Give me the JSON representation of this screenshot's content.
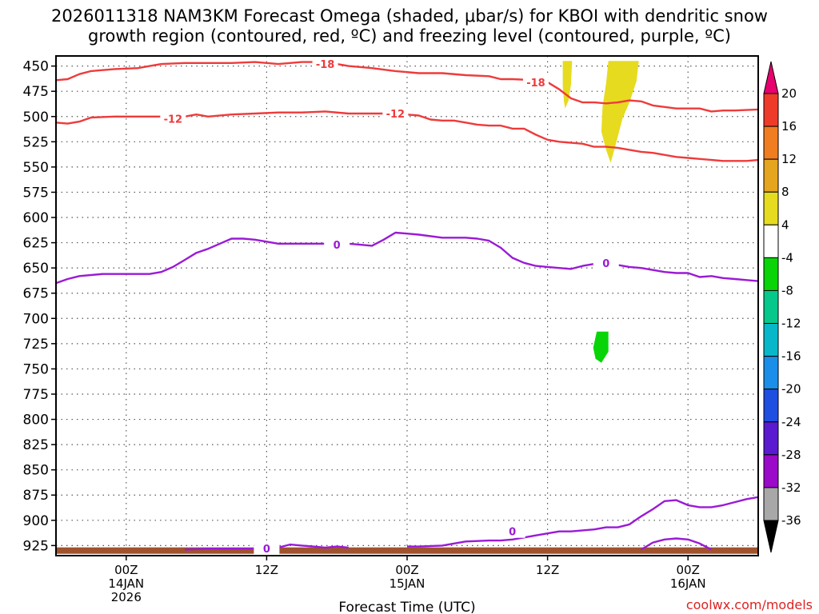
{
  "title_line1": "2026011318 NAM3KM Forecast Omega (shaded, μbar/s) for KBOI with dendritic snow",
  "title_line2": "growth region (contoured, red, ºC) and freezing level (contoured, purple, ºC)",
  "xlabel": "Forecast Time (UTC)",
  "credit": "coolwx.com/models",
  "chart_data": {
    "type": "heatmap",
    "title": "2026011318 NAM3KM Forecast Omega (shaded, μbar/s) for KBOI with dendritic snow growth region (contoured, red, ºC) and freezing level (contoured, purple, ºC)",
    "xlabel": "Forecast Time (UTC)",
    "ylabel": "",
    "x_unit": "forecast hour from 2026-01-13 18Z",
    "xlim": [
      0,
      60
    ],
    "ylim": [
      440,
      935
    ],
    "y_inverted": true,
    "y_ticks": [
      450,
      475,
      500,
      525,
      550,
      575,
      600,
      625,
      650,
      675,
      700,
      725,
      750,
      775,
      800,
      825,
      850,
      875,
      900,
      925
    ],
    "x_ticks": [
      {
        "x": 6,
        "lines": [
          "00Z",
          "14JAN",
          "2026"
        ]
      },
      {
        "x": 18,
        "lines": [
          "12Z"
        ]
      },
      {
        "x": 30,
        "lines": [
          "00Z",
          "15JAN"
        ]
      },
      {
        "x": 42,
        "lines": [
          "12Z"
        ]
      },
      {
        "x": 54,
        "lines": [
          "00Z",
          "16JAN"
        ]
      }
    ],
    "grid": true,
    "colorbar": {
      "label_values": [
        20,
        16,
        12,
        8,
        4,
        -4,
        -8,
        -12,
        -16,
        -20,
        -24,
        -28,
        -32,
        -36
      ],
      "colors": [
        "#e8006f",
        "#ee3b2a",
        "#f07d20",
        "#e6a51f",
        "#e6db1f",
        "#ffffff",
        "#08d408",
        "#06c88a",
        "#08b8c8",
        "#1a8ee8",
        "#1f4fe0",
        "#5a1ad0",
        "#9a0ac8",
        "#a8a8a8",
        "#000000"
      ]
    },
    "contours": [
      {
        "name": "-18",
        "color": "#ee3b3b",
        "label": "-18",
        "label_at": [
          [
            23,
            448
          ],
          [
            41,
            466
          ]
        ],
        "points": [
          [
            0,
            464
          ],
          [
            1,
            463
          ],
          [
            2,
            458
          ],
          [
            3,
            455
          ],
          [
            5,
            453
          ],
          [
            7,
            452
          ],
          [
            8,
            450
          ],
          [
            9,
            448
          ],
          [
            11,
            447
          ],
          [
            13,
            447
          ],
          [
            15,
            447
          ],
          [
            17,
            446
          ],
          [
            19,
            448
          ],
          [
            21,
            446
          ],
          [
            23,
            446
          ],
          [
            25,
            450
          ],
          [
            27,
            452
          ],
          [
            29,
            455
          ],
          [
            31,
            457
          ],
          [
            33,
            457
          ],
          [
            35,
            459
          ],
          [
            37,
            460
          ],
          [
            38,
            463
          ],
          [
            39,
            463
          ],
          [
            41,
            464
          ],
          [
            42,
            466
          ],
          [
            43,
            473
          ],
          [
            44,
            482
          ],
          [
            45,
            486
          ],
          [
            46,
            486
          ],
          [
            47,
            487
          ],
          [
            48,
            486
          ],
          [
            49,
            484
          ],
          [
            50,
            485
          ],
          [
            51,
            489
          ],
          [
            53,
            492
          ],
          [
            55,
            492
          ],
          [
            56,
            495
          ],
          [
            57,
            494
          ],
          [
            58,
            494
          ],
          [
            60,
            493
          ]
        ]
      },
      {
        "name": "-12",
        "color": "#ee3b3b",
        "label": "-12",
        "label_at": [
          [
            10,
            502
          ],
          [
            29,
            497
          ]
        ],
        "points": [
          [
            0,
            506
          ],
          [
            1,
            507
          ],
          [
            2,
            505
          ],
          [
            3,
            501
          ],
          [
            5,
            500
          ],
          [
            7,
            500
          ],
          [
            9,
            500
          ],
          [
            11,
            500
          ],
          [
            12,
            498
          ],
          [
            13,
            500
          ],
          [
            15,
            498
          ],
          [
            17,
            497
          ],
          [
            19,
            496
          ],
          [
            21,
            496
          ],
          [
            23,
            495
          ],
          [
            25,
            497
          ],
          [
            27,
            497
          ],
          [
            29,
            497
          ],
          [
            31,
            499
          ],
          [
            32,
            503
          ],
          [
            33,
            504
          ],
          [
            34,
            504
          ],
          [
            35,
            506
          ],
          [
            36,
            508
          ],
          [
            37,
            509
          ],
          [
            38,
            509
          ],
          [
            39,
            512
          ],
          [
            40,
            512
          ],
          [
            41,
            518
          ],
          [
            42,
            523
          ],
          [
            43,
            525
          ],
          [
            44,
            526
          ],
          [
            45,
            527
          ],
          [
            46,
            530
          ],
          [
            47,
            530
          ],
          [
            48,
            531
          ],
          [
            49,
            533
          ],
          [
            50,
            535
          ],
          [
            51,
            536
          ],
          [
            53,
            540
          ],
          [
            54,
            541
          ],
          [
            55,
            542
          ],
          [
            57,
            544
          ],
          [
            58,
            544
          ],
          [
            59,
            544
          ],
          [
            60,
            543
          ]
        ]
      },
      {
        "name": "0 aloft",
        "color": "#9a1ad6",
        "label": "0",
        "label_at": [
          [
            24,
            627
          ],
          [
            47,
            645
          ]
        ],
        "points": [
          [
            0,
            665
          ],
          [
            1,
            661
          ],
          [
            2,
            658
          ],
          [
            4,
            656
          ],
          [
            6,
            656
          ],
          [
            8,
            656
          ],
          [
            9,
            654
          ],
          [
            10,
            649
          ],
          [
            11,
            642
          ],
          [
            12,
            635
          ],
          [
            13,
            631
          ],
          [
            14,
            626
          ],
          [
            15,
            621
          ],
          [
            16,
            621
          ],
          [
            17,
            622
          ],
          [
            18,
            624
          ],
          [
            19,
            626
          ],
          [
            21,
            626
          ],
          [
            23,
            626
          ],
          [
            25,
            626
          ],
          [
            26,
            627
          ],
          [
            27,
            628
          ],
          [
            28,
            622
          ],
          [
            29,
            615
          ],
          [
            30,
            616
          ],
          [
            31,
            617
          ],
          [
            33,
            620
          ],
          [
            35,
            620
          ],
          [
            36,
            621
          ],
          [
            37,
            623
          ],
          [
            38,
            630
          ],
          [
            39,
            640
          ],
          [
            40,
            645
          ],
          [
            41,
            648
          ],
          [
            42,
            649
          ],
          [
            43,
            650
          ],
          [
            44,
            651
          ],
          [
            45,
            648
          ],
          [
            46,
            646
          ],
          [
            47,
            645
          ],
          [
            48,
            647
          ],
          [
            49,
            649
          ],
          [
            50,
            650
          ],
          [
            51,
            652
          ],
          [
            52,
            654
          ],
          [
            53,
            655
          ],
          [
            54,
            655
          ],
          [
            55,
            659
          ],
          [
            56,
            658
          ],
          [
            57,
            660
          ],
          [
            58,
            661
          ],
          [
            59,
            662
          ],
          [
            60,
            663
          ]
        ]
      },
      {
        "name": "0 lower",
        "color": "#9a1ad6",
        "label": "0",
        "label_at": [
          [
            39,
            911
          ]
        ],
        "points": [
          [
            30,
            926
          ],
          [
            31,
            926
          ],
          [
            33,
            925
          ],
          [
            35,
            921
          ],
          [
            37,
            920
          ],
          [
            38,
            920
          ],
          [
            39,
            919
          ],
          [
            40,
            917
          ],
          [
            41,
            915
          ],
          [
            42,
            913
          ],
          [
            43,
            911
          ],
          [
            44,
            911
          ],
          [
            45,
            910
          ],
          [
            46,
            909
          ],
          [
            47,
            907
          ],
          [
            48,
            907
          ],
          [
            49,
            904
          ],
          [
            50,
            896
          ],
          [
            51,
            889
          ],
          [
            52,
            881
          ],
          [
            53,
            880
          ],
          [
            54,
            885
          ],
          [
            55,
            887
          ],
          [
            56,
            887
          ],
          [
            57,
            885
          ],
          [
            58,
            882
          ],
          [
            59,
            879
          ],
          [
            60,
            877
          ]
        ]
      },
      {
        "name": "0 surface",
        "color": "#9a1ad6",
        "label": "0",
        "label_at": [
          [
            18,
            928
          ]
        ],
        "points": [
          [
            11,
            929
          ],
          [
            13,
            928
          ],
          [
            15,
            928
          ],
          [
            17,
            928
          ],
          [
            19,
            927
          ],
          [
            20,
            924
          ],
          [
            21,
            925
          ],
          [
            22,
            926
          ],
          [
            23,
            927
          ],
          [
            24,
            926
          ],
          [
            25,
            927
          ]
        ]
      },
      {
        "name": "0 blob",
        "color": "#9a1ad6",
        "label": "",
        "points": [
          [
            50,
            929
          ],
          [
            51,
            922
          ],
          [
            52,
            919
          ],
          [
            53,
            918
          ],
          [
            54,
            919
          ],
          [
            55,
            923
          ],
          [
            56,
            929
          ]
        ]
      }
    ],
    "shaded": [
      {
        "value_range": [
          4,
          8
        ],
        "color": "#e6db1f",
        "points": [
          [
            43.3,
            445
          ],
          [
            44.1,
            445
          ],
          [
            44.0,
            468
          ],
          [
            43.8,
            484
          ],
          [
            43.5,
            492
          ],
          [
            43.4,
            485
          ],
          [
            43.3,
            470
          ]
        ]
      },
      {
        "value_range": [
          4,
          8
        ],
        "color": "#e6db1f",
        "points": [
          [
            47.2,
            445
          ],
          [
            49.8,
            445
          ],
          [
            49.6,
            465
          ],
          [
            49.0,
            486
          ],
          [
            48.4,
            502
          ],
          [
            48.0,
            520
          ],
          [
            47.7,
            533
          ],
          [
            47.4,
            546
          ],
          [
            47.0,
            533
          ],
          [
            46.6,
            515
          ],
          [
            46.7,
            490
          ],
          [
            47.0,
            467
          ]
        ]
      },
      {
        "value_range": [
          -8,
          -4
        ],
        "color": "#08d408",
        "points": [
          [
            46.2,
            713
          ],
          [
            47.2,
            713
          ],
          [
            47.2,
            733
          ],
          [
            46.6,
            744
          ],
          [
            46.1,
            740
          ],
          [
            45.9,
            729
          ]
        ]
      }
    ],
    "terrain": {
      "color": "#a0522d",
      "pressure": 930
    }
  }
}
